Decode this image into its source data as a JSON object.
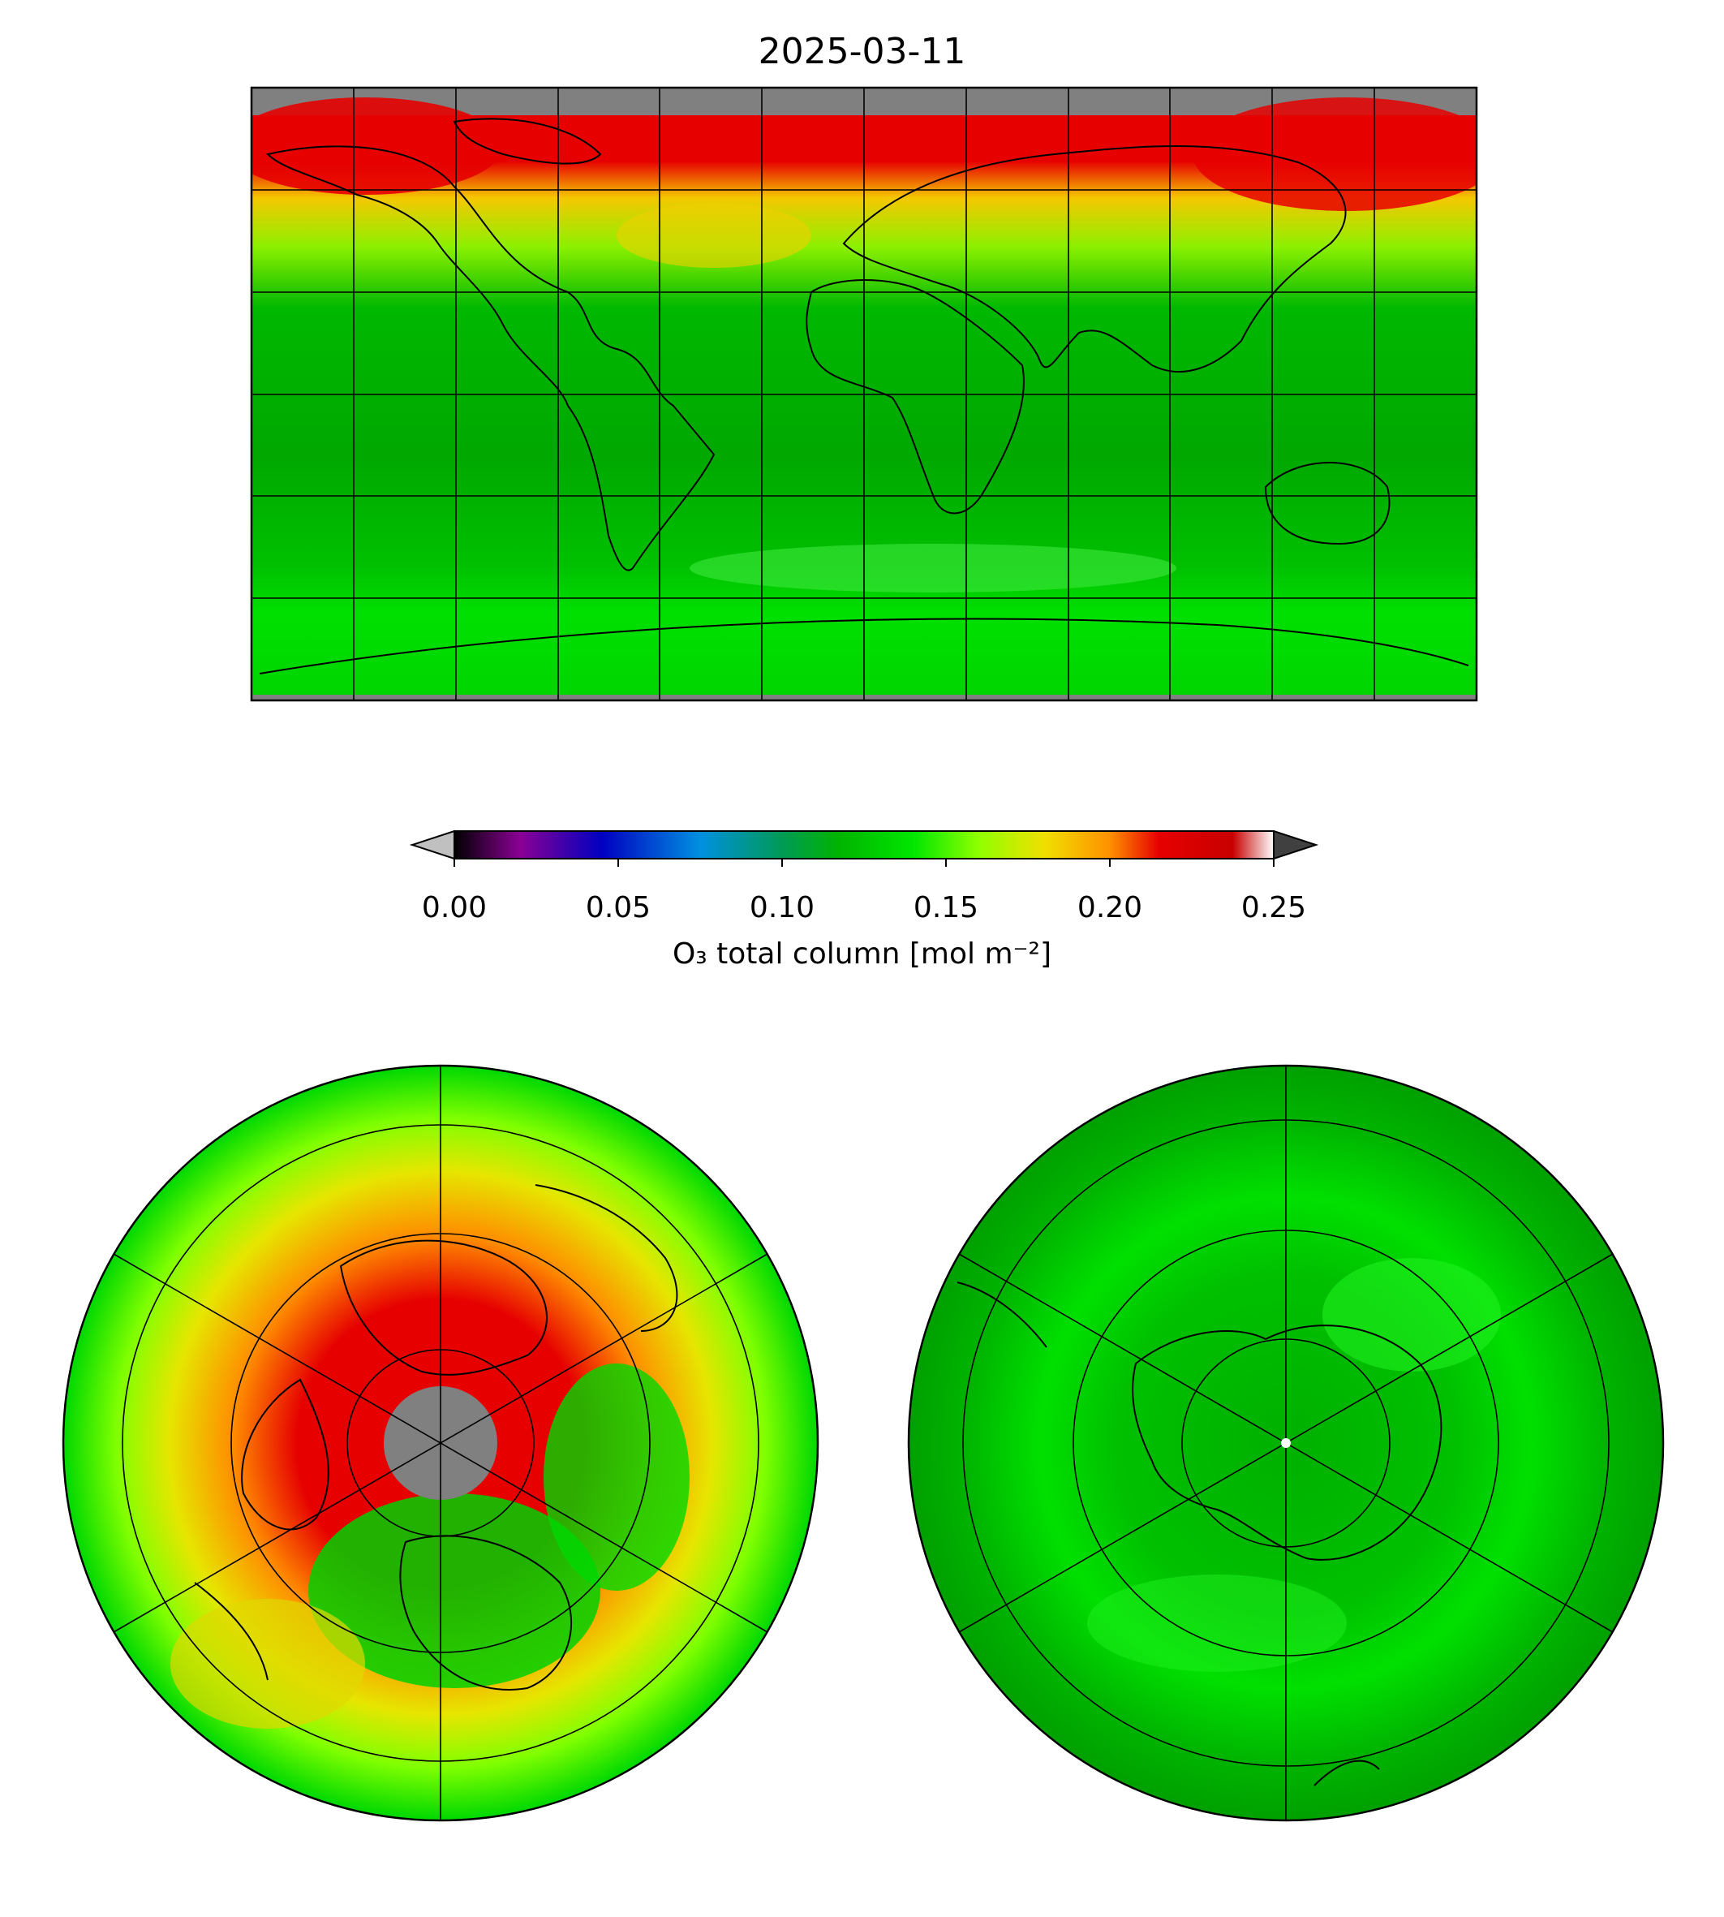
{
  "title": "2025-03-11",
  "colorbar": {
    "ticks": [
      "0.00",
      "0.05",
      "0.10",
      "0.15",
      "0.20",
      "0.25"
    ],
    "tick_values": [
      0.0,
      0.05,
      0.1,
      0.15,
      0.2,
      0.25
    ],
    "range": [
      0.0,
      0.25
    ],
    "extend": "both",
    "label": "O₃ total column [mol m⁻²]",
    "stops": [
      "#000000",
      "#8a0094",
      "#0000c0",
      "#0090e0",
      "#009a55",
      "#00b400",
      "#00e600",
      "#90ff00",
      "#f0e000",
      "#ff9000",
      "#e60000",
      "#c80000",
      "#ffffff"
    ],
    "under_color": "#c0c0c0",
    "over_color": "#404040"
  },
  "panels": [
    {
      "projection": "equirectangular",
      "region": "global"
    },
    {
      "projection": "orthographic",
      "region": "northern-hemisphere"
    },
    {
      "projection": "orthographic",
      "region": "southern-hemisphere"
    }
  ],
  "colors": {
    "high_ozone": "#e60000",
    "medium_ozone": "#f5c800",
    "low_ozone_light": "#00e000",
    "low_ozone_dark": "#00a800",
    "no_data": "#808080"
  }
}
